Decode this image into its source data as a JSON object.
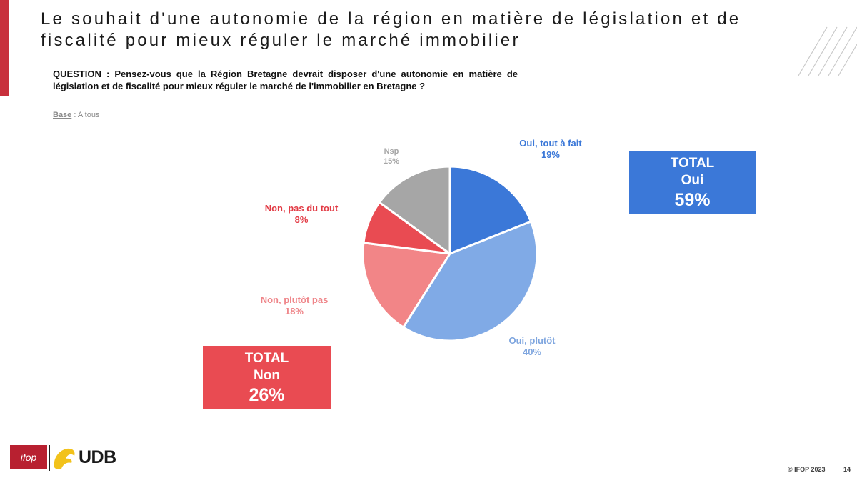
{
  "slide": {
    "title": "Le souhait d'une autonomie de la région en matière de législation et de fiscalité pour mieux réguler le marché immobilier",
    "question": "QUESTION : Pensez-vous que la Région Bretagne devrait disposer d'une autonomie en matière de législation et de fiscalité pour mieux réguler le marché de l'immobilier en Bretagne ?",
    "base_label": "Base",
    "base_value": " : A tous"
  },
  "chart_data": {
    "type": "pie",
    "start_angle_deg": 0,
    "direction": "clockwise",
    "slices": [
      {
        "label": "Oui, tout à fait",
        "value": 19,
        "display": "19%",
        "color": "#3b78d8",
        "text_color": "#3b78d8"
      },
      {
        "label": "Oui, plutôt",
        "value": 40,
        "display": "40%",
        "color": "#80aae6",
        "text_color": "#7fa6df"
      },
      {
        "label": "Non, plutôt pas",
        "value": 18,
        "display": "18%",
        "color": "#f28587",
        "text_color": "#ef8589"
      },
      {
        "label": "Non, pas du tout",
        "value": 8,
        "display": "8%",
        "color": "#e94b52",
        "text_color": "#e23a44"
      },
      {
        "label": "Nsp",
        "value": 15,
        "display": "15%",
        "color": "#a6a6a6",
        "text_color": "#a6a6a6"
      }
    ]
  },
  "totals": {
    "oui": {
      "label1": "TOTAL",
      "label2": "Oui",
      "value": "59%",
      "color": "#3b78d8"
    },
    "non": {
      "label1": "TOTAL",
      "label2": "Non",
      "value": "26%",
      "color": "#e94b52"
    }
  },
  "footer": {
    "ifop_logo": "ifop",
    "udb_logo": "UDB",
    "copyright": "© IFOP 2023",
    "page_number": "14"
  }
}
